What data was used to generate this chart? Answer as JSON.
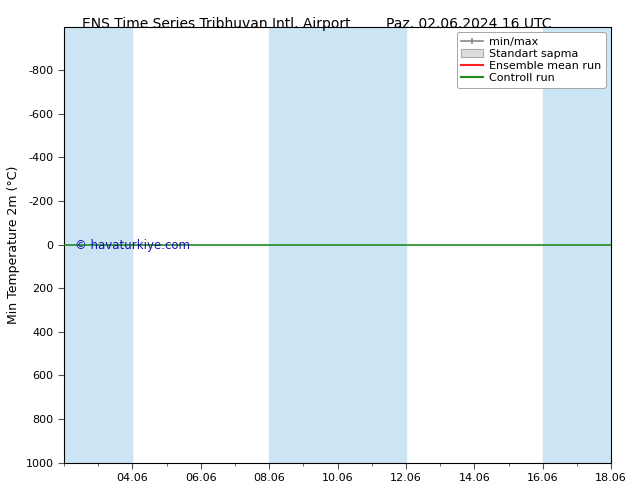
{
  "title_left": "ENS Time Series Tribhuvan Intl. Airport",
  "title_right": "Paz. 02.06.2024 16 UTC",
  "ylabel": "Min Temperature 2m (°C)",
  "ylim_bottom": 1000,
  "ylim_top": -1000,
  "yticks": [
    -800,
    -600,
    -400,
    -200,
    0,
    200,
    400,
    600,
    800,
    1000
  ],
  "xlim": [
    0,
    16
  ],
  "xtick_labels": [
    "04.06",
    "06.06",
    "08.06",
    "10.06",
    "12.06",
    "14.06",
    "16.06",
    "18.06"
  ],
  "xtick_positions": [
    2,
    4,
    6,
    8,
    10,
    12,
    14,
    16
  ],
  "shaded_bands": [
    [
      0,
      2
    ],
    [
      6,
      8
    ],
    [
      8,
      10
    ],
    [
      14,
      16
    ]
  ],
  "band_color": "#cce5f5",
  "green_line_y": 0,
  "green_line_color": "#228B22",
  "watermark": "© havaturkiye.com",
  "watermark_color": "#0000aa",
  "bg_color": "#ffffff",
  "title_fontsize": 10,
  "axis_label_fontsize": 9,
  "tick_fontsize": 8,
  "legend_fontsize": 8
}
